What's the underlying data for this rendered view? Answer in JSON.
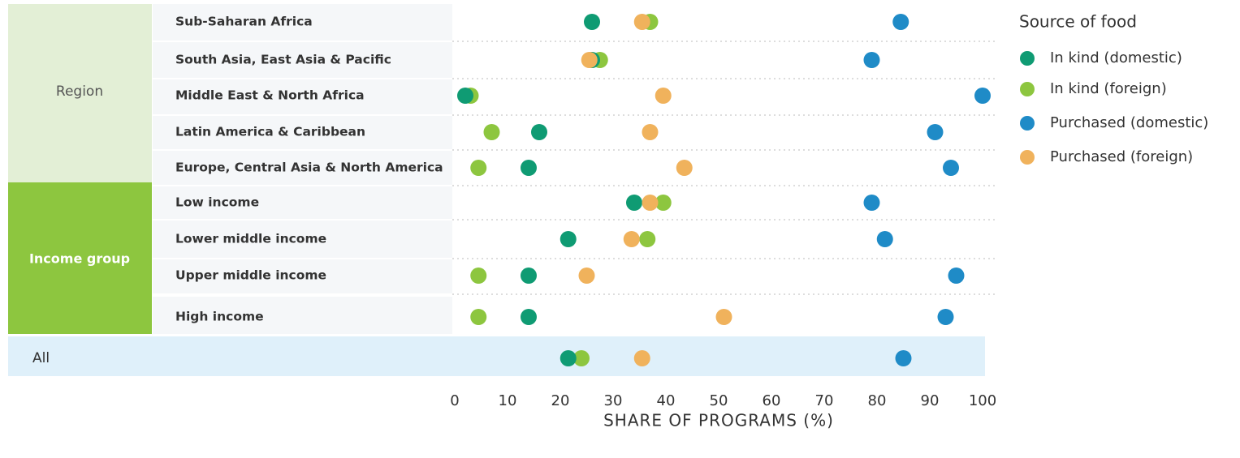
{
  "chart_data": {
    "type": "dot",
    "xlabel": "SHARE OF PROGRAMS (%)",
    "legend_title": "Source of food",
    "groups": [
      "Region",
      "Income group"
    ],
    "categories": [
      "Sub-Saharan Africa",
      "South Asia, East Asia & Pacific",
      "Middle East & North Africa",
      "Latin America & Caribbean",
      "Europe, Central Asia & North America",
      "Low income",
      "Lower middle income",
      "Upper middle income",
      "High income",
      "All"
    ],
    "series": [
      {
        "name": "In kind (domestic)",
        "color": "#0f9b73",
        "values": [
          26,
          26,
          2,
          16,
          14,
          34,
          21.5,
          14,
          14,
          21.5
        ]
      },
      {
        "name": "In kind (foreign)",
        "color": "#8dc63f",
        "values": [
          37,
          27.5,
          3,
          7,
          4.5,
          39.5,
          36.5,
          4.5,
          4.5,
          24
        ]
      },
      {
        "name": "Purchased (domestic)",
        "color": "#1f8bc7",
        "values": [
          84.5,
          79,
          100,
          91,
          94,
          79,
          81.5,
          95,
          93,
          85
        ]
      },
      {
        "name": "Purchased (foreign)",
        "color": "#f0b25c",
        "values": [
          35.5,
          25.5,
          39.5,
          37,
          43.5,
          37,
          33.5,
          25,
          51,
          35.5
        ]
      }
    ],
    "xlim": [
      0,
      100
    ],
    "xticks": [
      0,
      10,
      20,
      30,
      40,
      50,
      60,
      70,
      80,
      90,
      100
    ]
  }
}
